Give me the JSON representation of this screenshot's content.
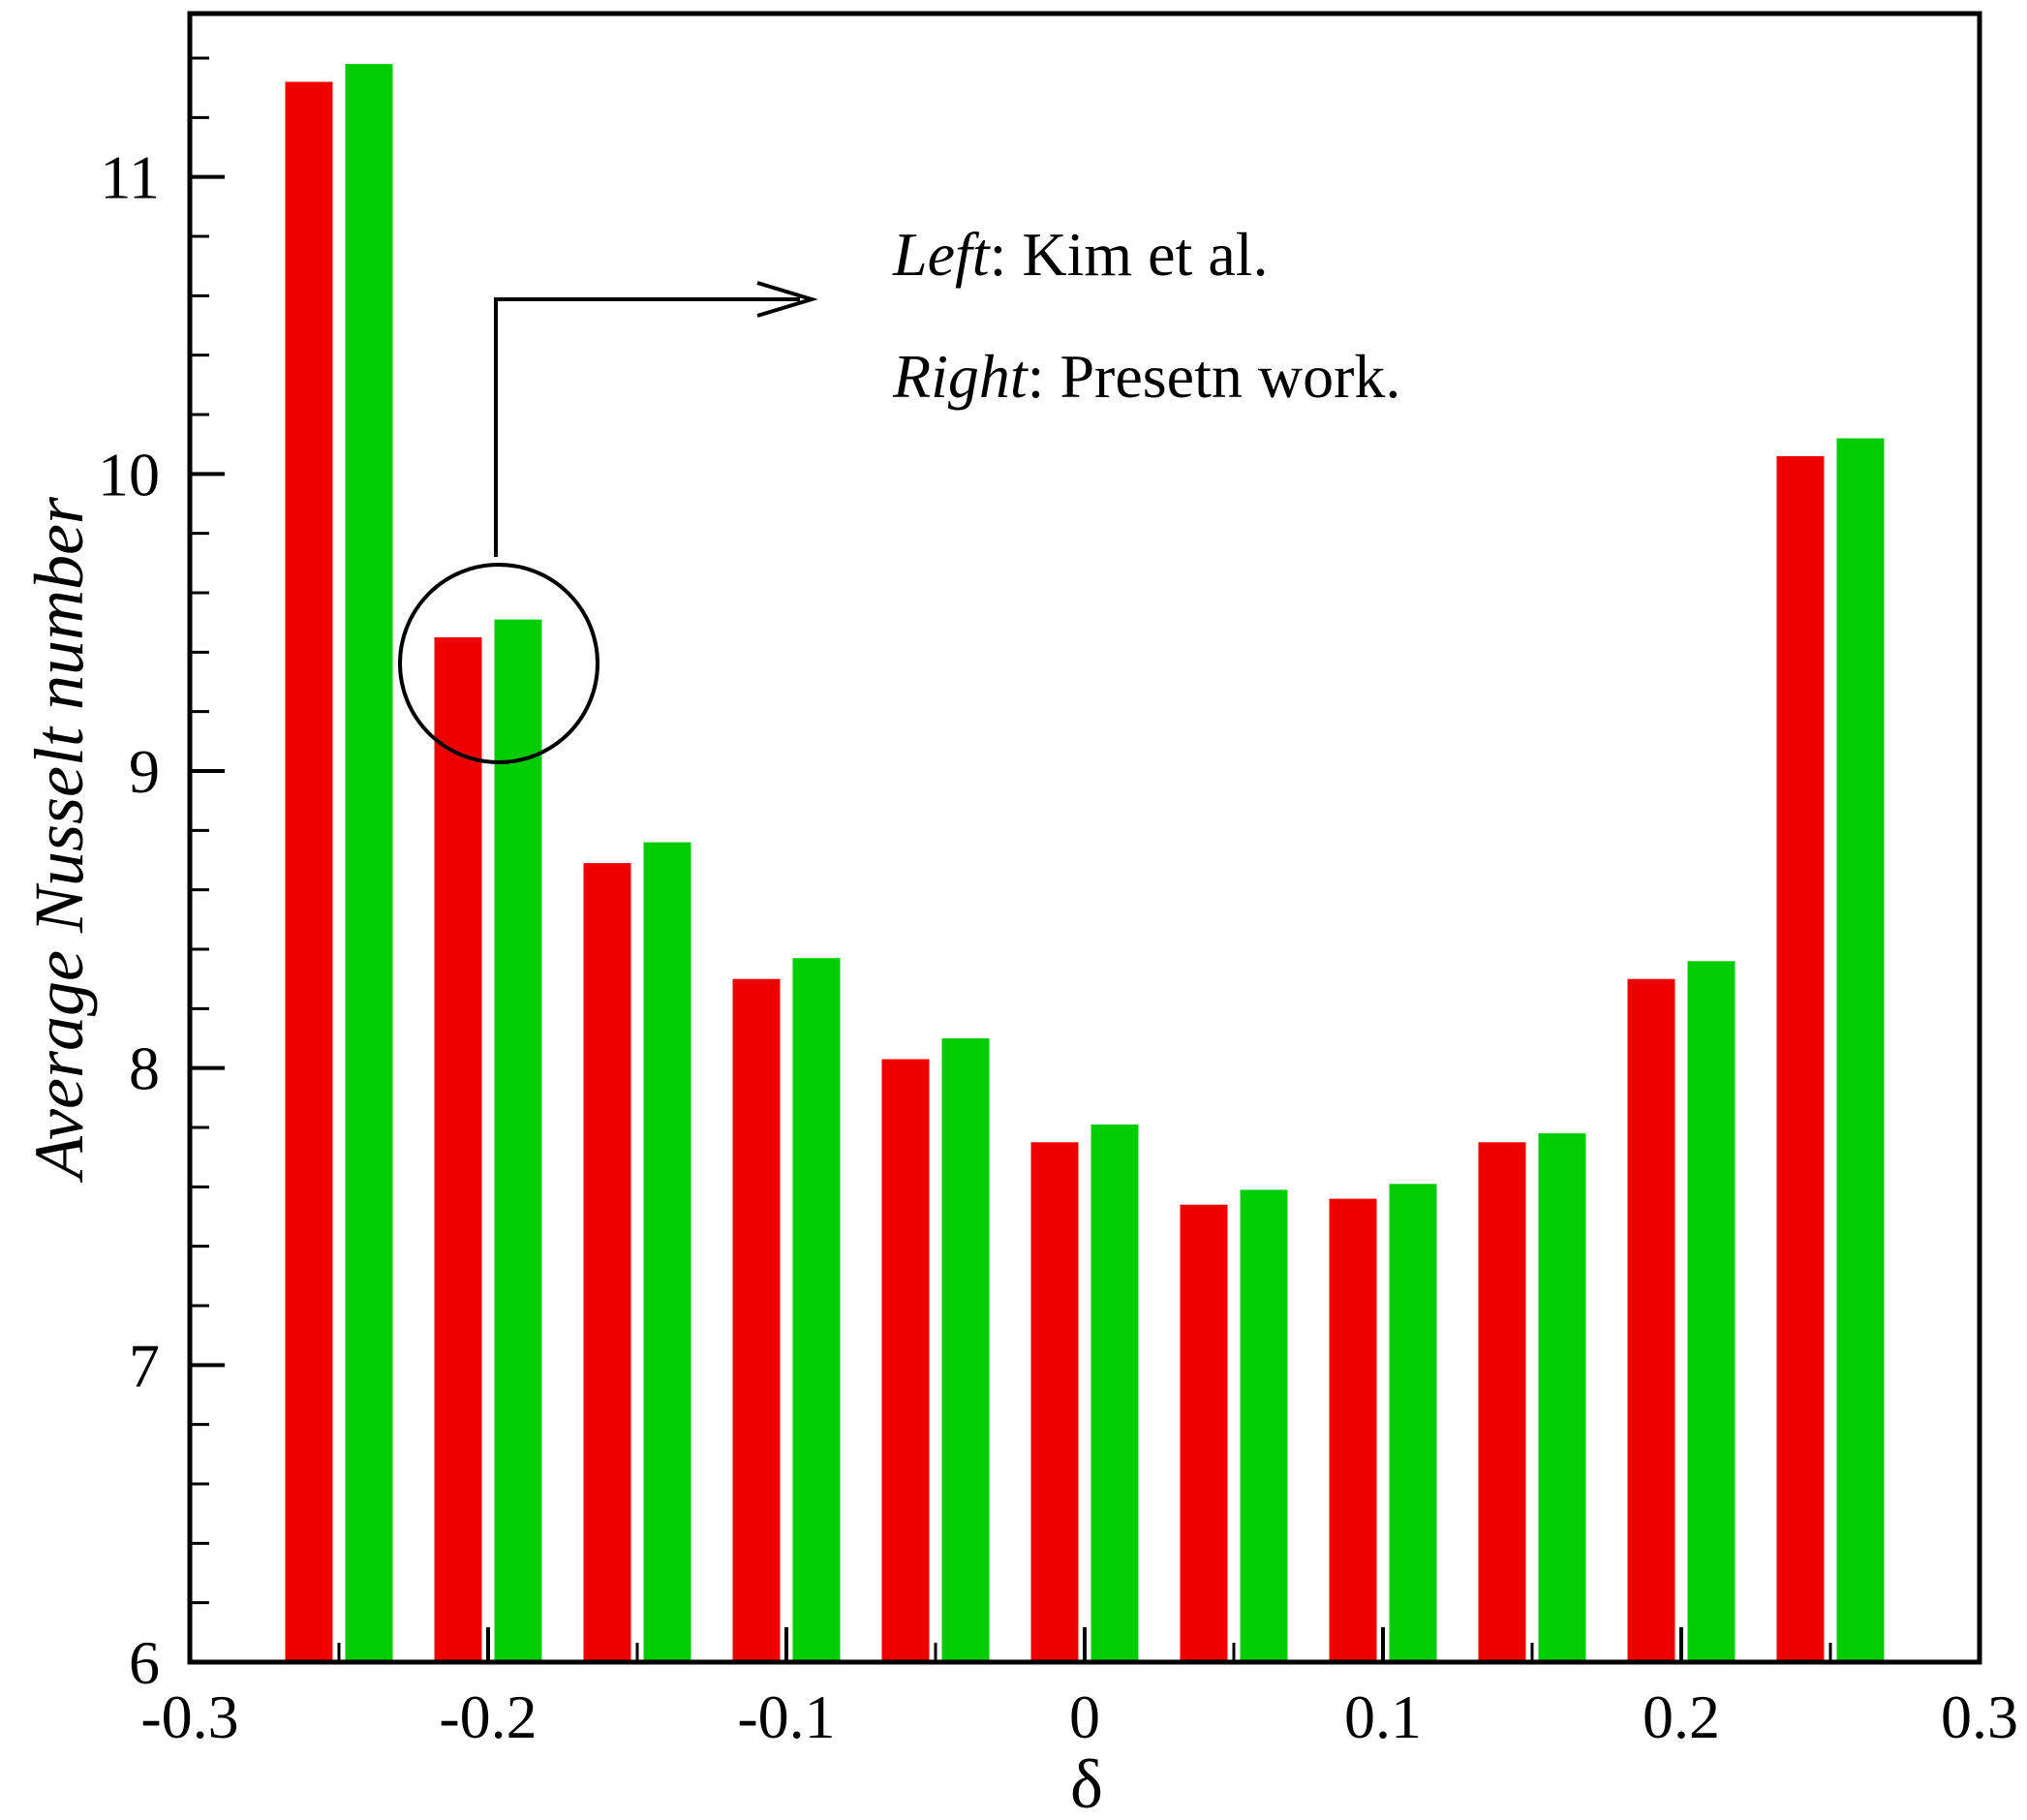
{
  "chart_data": {
    "type": "bar",
    "xlabel": "δ",
    "ylabel": "Average Nusselt number",
    "xlim": [
      -0.3,
      0.3
    ],
    "ylim": [
      6,
      11.55
    ],
    "x_ticks": [
      "-0.3",
      "-0.2",
      "-0.1",
      "0",
      "0.1",
      "0.2",
      "0.3"
    ],
    "y_ticks": [
      "6",
      "7",
      "8",
      "9",
      "10",
      "11"
    ],
    "x": [
      -0.25,
      -0.2,
      -0.15,
      -0.1,
      -0.05,
      0,
      0.05,
      0.1,
      0.15,
      0.2,
      0.25
    ],
    "series": [
      {
        "color": "#ee0000",
        "values": [
          11.32,
          9.45,
          8.69,
          8.3,
          8.03,
          7.75,
          7.54,
          7.56,
          7.75,
          8.3,
          10.06
        ]
      },
      {
        "color": "#00cc00",
        "values": [
          11.38,
          9.51,
          8.76,
          8.37,
          8.1,
          7.81,
          7.59,
          7.61,
          7.78,
          8.36,
          10.12
        ]
      }
    ],
    "annotations": {
      "line1_italic": "Left",
      "line1_rest": ": Kim et al.",
      "line2_italic": "Right",
      "line2_rest": ": Presetn work."
    },
    "grid": false,
    "legend": "none"
  }
}
